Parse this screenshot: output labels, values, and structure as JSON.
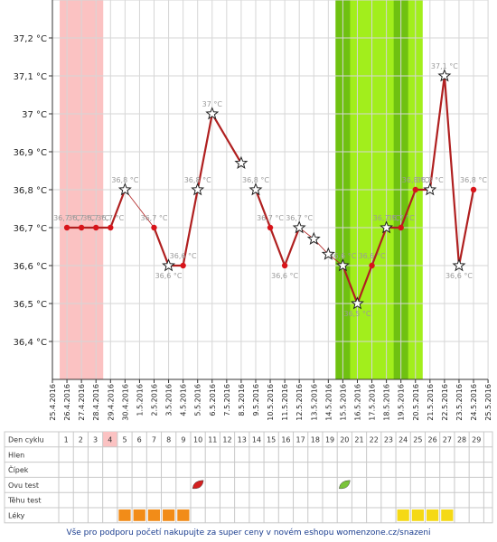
{
  "chart_data": {
    "type": "line",
    "title": "",
    "xlabel": "",
    "ylabel": "",
    "ylim": [
      36.3,
      37.3
    ],
    "y_ticks": [
      "36,4 °C",
      "36,5 °C",
      "36,6 °C",
      "36,7 °C",
      "36,8 °C",
      "36,9 °C",
      "37 °C",
      "37,1 °C",
      "37,2 °C"
    ],
    "y_tick_values": [
      36.4,
      36.5,
      36.6,
      36.7,
      36.8,
      36.9,
      37.0,
      37.1,
      37.2
    ],
    "dates": [
      "25.4.2016",
      "26.4.2016",
      "27.4.2016",
      "28.4.2016",
      "29.4.2016",
      "30.4.2016",
      "1.5.2016",
      "2.5.2016",
      "3.5.2016",
      "4.5.2016",
      "5.5.2016",
      "6.5.2016",
      "7.5.2016",
      "8.5.2016",
      "9.5.2016",
      "10.5.2016",
      "11.5.2016",
      "12.5.2016",
      "13.5.2016",
      "14.5.2016",
      "15.5.2016",
      "16.5.2016",
      "17.5.2016",
      "18.5.2016",
      "19.5.2016",
      "20.5.2016",
      "21.5.2016",
      "22.5.2016",
      "23.5.2016",
      "24.5.2016",
      "25.5.2016"
    ],
    "menstruation_dates": [
      "26.4.2016",
      "27.4.2016",
      "28.4.2016"
    ],
    "fertile_dates": [
      "15.5.2016",
      "16.5.2016",
      "17.5.2016",
      "18.5.2016",
      "19.5.2016",
      "20.5.2016"
    ],
    "peak_dates": [
      "15.5.2016",
      "19.5.2016"
    ],
    "series": [
      {
        "points": [
          {
            "x": "26.4.2016",
            "y": 36.7,
            "marker": "dot",
            "label": "36,7 °C"
          },
          {
            "x": "27.4.2016",
            "y": 36.7,
            "marker": "dot",
            "label": "36,7 °C"
          },
          {
            "x": "28.4.2016",
            "y": 36.7,
            "marker": "dot",
            "label": "36,7 °C"
          },
          {
            "x": "29.4.2016",
            "y": 36.7,
            "marker": "dot",
            "label": "36,7 °C"
          },
          {
            "x": "30.4.2016",
            "y": 36.8,
            "marker": "star",
            "label": "36,8 °C"
          },
          {
            "x": "2.5.2016",
            "y": 36.7,
            "marker": "dot",
            "label": "36,7 °C"
          },
          {
            "x": "3.5.2016",
            "y": 36.6,
            "marker": "star",
            "label": "36,6 °C"
          },
          {
            "x": "4.5.2016",
            "y": 36.6,
            "marker": "dot",
            "label": "36,6 °C"
          },
          {
            "x": "5.5.2016",
            "y": 36.8,
            "marker": "star",
            "label": "36,8 °C"
          },
          {
            "x": "6.5.2016",
            "y": 37.0,
            "marker": "star",
            "label": "37 °C"
          },
          {
            "x": "8.5.2016",
            "y": 36.87,
            "marker": "star",
            "label": ""
          },
          {
            "x": "9.5.2016",
            "y": 36.8,
            "marker": "star",
            "label": "36,8 °C"
          },
          {
            "x": "10.5.2016",
            "y": 36.7,
            "marker": "dot",
            "label": "36,7 °C"
          },
          {
            "x": "11.5.2016",
            "y": 36.6,
            "marker": "dot",
            "label": "36,6 °C"
          },
          {
            "x": "12.5.2016",
            "y": 36.7,
            "marker": "star",
            "label": "36,7 °C"
          },
          {
            "x": "13.5.2016",
            "y": 36.67,
            "marker": "star",
            "label": ""
          },
          {
            "x": "14.5.2016",
            "y": 36.63,
            "marker": "star",
            "label": ""
          },
          {
            "x": "15.5.2016",
            "y": 36.6,
            "marker": "star",
            "label": "36,6 °C"
          },
          {
            "x": "16.5.2016",
            "y": 36.5,
            "marker": "star",
            "label": "36,5 °C"
          },
          {
            "x": "17.5.2016",
            "y": 36.6,
            "marker": "dot",
            "label": "36,6 °C"
          },
          {
            "x": "18.5.2016",
            "y": 36.7,
            "marker": "star",
            "label": "36,7 °C"
          },
          {
            "x": "19.5.2016",
            "y": 36.7,
            "marker": "dot",
            "label": "36,7 °C"
          },
          {
            "x": "20.5.2016",
            "y": 36.8,
            "marker": "dot",
            "label": "36,8 °C"
          },
          {
            "x": "21.5.2016",
            "y": 36.8,
            "marker": "star",
            "label": "36,8 °C"
          },
          {
            "x": "22.5.2016",
            "y": 37.1,
            "marker": "star",
            "label": "37,1 °C"
          },
          {
            "x": "23.5.2016",
            "y": 36.6,
            "marker": "star",
            "label": "36,6 °C"
          },
          {
            "x": "24.5.2016",
            "y": 36.8,
            "marker": "dot",
            "label": "36,8 °C"
          }
        ],
        "solid_segments": [
          [
            0,
            4
          ],
          [
            5,
            10
          ],
          [
            11,
            14
          ],
          [
            17,
            23
          ],
          [
            23,
            26
          ]
        ],
        "thin_segments": [
          [
            4,
            5
          ],
          [
            9,
            10
          ],
          [
            13,
            17
          ]
        ]
      }
    ],
    "table": {
      "row_labels": [
        "Den cyklu",
        "Hlen",
        "Čípek",
        "Ovu test",
        "Těhu test",
        "Léky"
      ],
      "days": [
        "1",
        "2",
        "3",
        "4",
        "5",
        "6",
        "7",
        "8",
        "9",
        "10",
        "11",
        "12",
        "13",
        "14",
        "15",
        "16",
        "17",
        "18",
        "19",
        "20",
        "21",
        "22",
        "23",
        "24",
        "25",
        "26",
        "27",
        "28",
        "29"
      ],
      "menstruation_days": [
        "4"
      ],
      "ovu_tests": [
        {
          "day": "10",
          "color": "#d42020",
          "icon": "leaf-icon"
        },
        {
          "day": "20",
          "color": "#7ac43a",
          "icon": "leaf-icon"
        }
      ],
      "meds": [
        {
          "days": [
            "5",
            "6",
            "7",
            "8",
            "9"
          ],
          "color": "#f28c18"
        },
        {
          "days": [
            "24",
            "25",
            "26",
            "27"
          ],
          "color": "#f5d915"
        }
      ]
    },
    "colors": {
      "line": "#b02020",
      "dot": "#d8141a",
      "menstruation": "#fbc2c2",
      "fertile": "#a2ee1c",
      "peak": "#6fc111",
      "label": "#9a9a9a"
    }
  },
  "footer": {
    "text": "Vše pro podporu početí nakupujte za super ceny v novém eshopu womenzone.cz/snazeni"
  }
}
